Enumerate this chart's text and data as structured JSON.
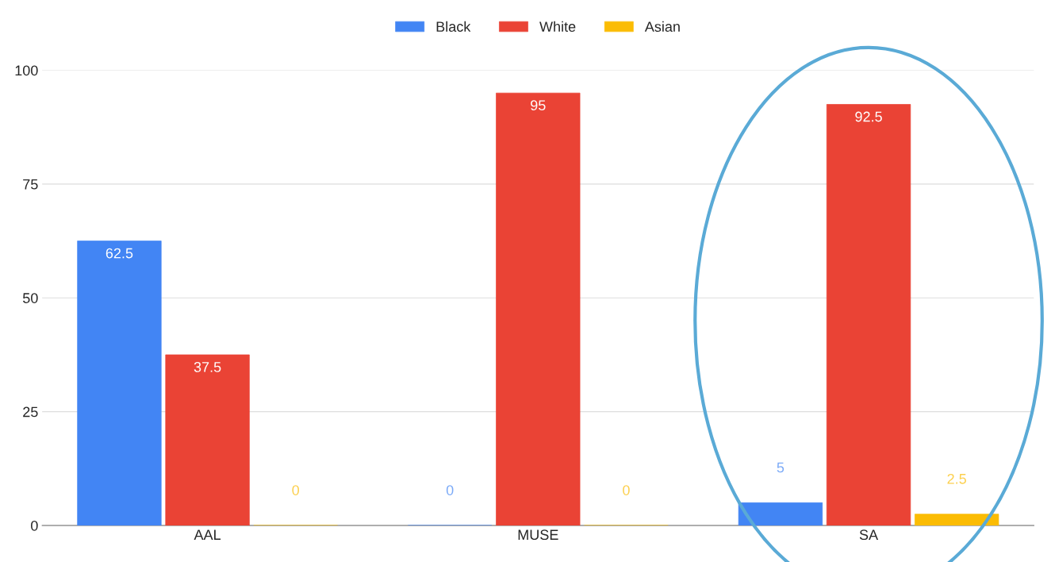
{
  "chart_data": {
    "type": "bar",
    "categories": [
      "AAL",
      "MUSE",
      "SA"
    ],
    "series": [
      {
        "name": "Black",
        "color": "#4285f4",
        "values": [
          62.5,
          0,
          5
        ]
      },
      {
        "name": "White",
        "color": "#ea4335",
        "values": [
          37.5,
          95,
          92.5
        ]
      },
      {
        "name": "Asian",
        "color": "#fbbc04",
        "values": [
          0,
          0,
          2.5
        ]
      }
    ],
    "ylim": [
      0,
      100
    ],
    "yticks": [
      0,
      25,
      50,
      75,
      100
    ],
    "grid": "y",
    "legend": "top",
    "data_labels": true
  }
}
